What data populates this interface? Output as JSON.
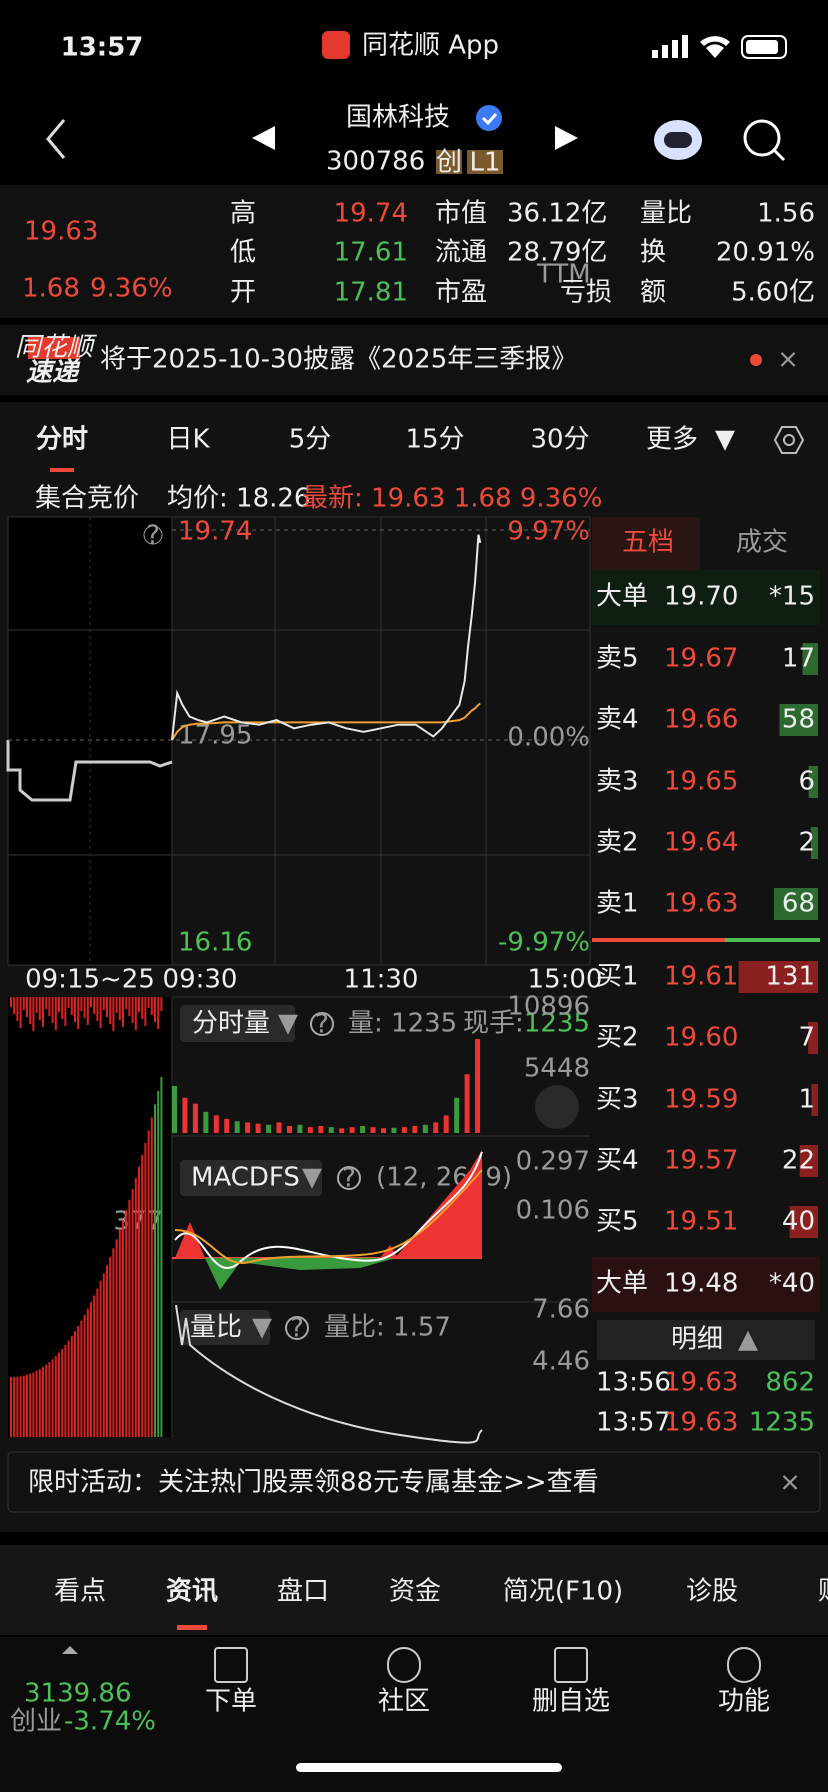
{
  "status": {
    "time": "13:57",
    "app": "同花顺 App"
  },
  "header": {
    "name": "国林科技",
    "code": "300786",
    "tags": [
      "创",
      "L1"
    ]
  },
  "quote": {
    "price": "19.63",
    "change": "1.68",
    "pct": "9.36%",
    "stats": [
      [
        "高",
        "19.74"
      ],
      [
        "低",
        "17.61"
      ],
      [
        "开",
        "17.81"
      ],
      [
        "市值",
        "36.12亿"
      ],
      [
        "流通",
        "28.79亿"
      ],
      [
        "市盈",
        "亏损"
      ],
      [
        "量比",
        "1.56"
      ],
      [
        "换",
        "20.91%"
      ],
      [
        "额",
        "5.60亿"
      ]
    ],
    "ttm": "TTM"
  },
  "notice": {
    "badge": [
      "同花顺",
      "速递"
    ],
    "text": "将于2025-10-30披露《2025年三季报》"
  },
  "tabs": [
    "分时",
    "日K",
    "5分",
    "15分",
    "30分",
    "更多"
  ],
  "info": {
    "auction": "集合竞价",
    "avg": "均价: 18.26",
    "latest": "最新: 19.63  1.68  9.36%"
  },
  "chart": {
    "high": 19.74,
    "low": 16.16,
    "prev_close": 17.95,
    "up_pct": "9.97%",
    "zero_pct": "0.00%",
    "down_pct": "-9.97%",
    "times": [
      "09:15~25",
      "09:30",
      "11:30",
      "15:00"
    ],
    "minutes": [
      0,
      3,
      6,
      10,
      15,
      20,
      30,
      40,
      50,
      60,
      70,
      80,
      90,
      100,
      110,
      120,
      130,
      140,
      150,
      155,
      160,
      165,
      168,
      170,
      172,
      174,
      176,
      177
    ],
    "price": [
      17.95,
      18.35,
      18.25,
      18.15,
      18.12,
      18.1,
      18.15,
      18.1,
      18.08,
      18.12,
      18.05,
      18.08,
      18.1,
      18.05,
      18.02,
      18.05,
      18.08,
      18.08,
      17.98,
      18.05,
      18.15,
      18.25,
      18.45,
      18.75,
      19.0,
      19.3,
      19.7,
      19.63
    ],
    "avg": [
      17.95,
      18.02,
      18.06,
      18.08,
      18.09,
      18.09,
      18.1,
      18.1,
      18.1,
      18.1,
      18.1,
      18.1,
      18.1,
      18.1,
      18.1,
      18.1,
      18.1,
      18.1,
      18.1,
      18.1,
      18.11,
      18.12,
      18.14,
      18.17,
      18.2,
      18.22,
      18.25,
      18.26
    ],
    "vol_label": "分时量",
    "vol": "量: 1235",
    "hand_label": "现手: ",
    "hand": "1235",
    "vol_max": 10896,
    "vol_mid": 5448,
    "vol_minutes": [
      0,
      6,
      12,
      18,
      24,
      30,
      36,
      42,
      48,
      54,
      60,
      66,
      72,
      78,
      84,
      90,
      96,
      102,
      108,
      114,
      120,
      126,
      132,
      138,
      144,
      150,
      156,
      162,
      168,
      174
    ],
    "volume": [
      4000,
      3000,
      2500,
      1800,
      1500,
      1200,
      1000,
      900,
      800,
      700,
      900,
      600,
      700,
      500,
      600,
      500,
      400,
      500,
      600,
      500,
      400,
      450,
      500,
      600,
      700,
      900,
      1500,
      3000,
      5000,
      8000
    ],
    "macd_label": "MACDFS",
    "macd_params": "(12, 26, 9)",
    "macd_top": "0.297",
    "macd_mid": "0.106",
    "auction_mark": "377",
    "lb_label": "量比",
    "lb": "量比: 1.57",
    "lb_top": "7.66",
    "lb_mid": "4.46"
  },
  "book": {
    "tabs": [
      "五档",
      "成交"
    ],
    "rows": [
      [
        "大单",
        "19.70",
        "*15"
      ],
      [
        "卖5",
        "19.67",
        "17"
      ],
      [
        "卖4",
        "19.66",
        "58"
      ],
      [
        "卖3",
        "19.65",
        "6"
      ],
      [
        "卖2",
        "19.64",
        "2"
      ],
      [
        "卖1",
        "19.63",
        "68"
      ],
      [
        "买1",
        "19.61",
        "131"
      ],
      [
        "买2",
        "19.60",
        "7"
      ],
      [
        "买3",
        "19.59",
        "1"
      ],
      [
        "买4",
        "19.57",
        "22"
      ],
      [
        "买5",
        "19.51",
        "40"
      ],
      [
        "大单",
        "19.48",
        "*40"
      ]
    ],
    "detail": "明细",
    "trades": [
      [
        "13:56",
        "19.63",
        "862"
      ],
      [
        "13:57",
        "19.63",
        "1235"
      ]
    ]
  },
  "banner": "限时活动：关注热门股票领88元专属基金>>查看",
  "bottom_tabs": [
    "看点",
    "资讯",
    "盘口",
    "资金",
    "简况(F10)",
    "诊股",
    "财务"
  ],
  "footer": {
    "index": "3139.86",
    "board": "创业",
    "index_pct": "-3.74%",
    "buttons": [
      "下单",
      "社区",
      "删自选",
      "功能"
    ]
  }
}
